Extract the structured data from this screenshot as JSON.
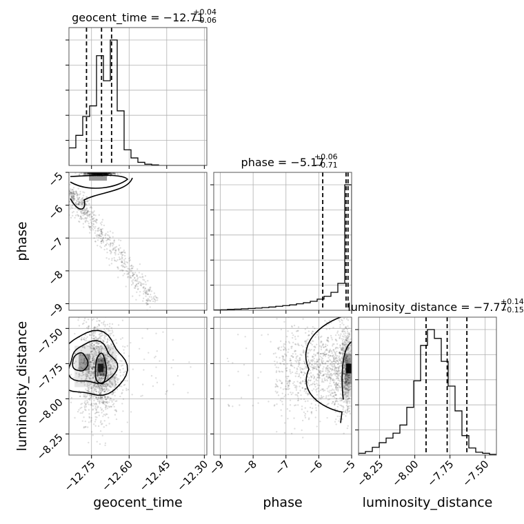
{
  "chart_data": {
    "type": "corner",
    "parameters": [
      "geocent_time",
      "phase",
      "luminosity_distance"
    ],
    "grid": true,
    "titles": [
      {
        "parameter": "geocent_time",
        "label": "geocent_time = ",
        "median": "−12.71",
        "plus": "+0.04",
        "minus": "−0.06"
      },
      {
        "parameter": "phase",
        "label": "phase = ",
        "median": "−5.17",
        "plus": "+0.06",
        "minus": "−0.71"
      },
      {
        "parameter": "luminosity_distance",
        "label": "luminosity_distance = ",
        "median": "−7.77",
        "plus": "+0.14",
        "minus": "−0.15"
      }
    ],
    "axes": {
      "geocent_time": {
        "range": [
          -12.84,
          -12.29
        ],
        "ticks": [
          -12.75,
          -12.6,
          -12.45,
          -12.3
        ],
        "tick_labels": [
          "−12.75",
          "−12.60",
          "−12.45",
          "−12.30"
        ]
      },
      "phase": {
        "range": [
          -9.2,
          -5.0
        ],
        "ticks": [
          -9,
          -8,
          -7,
          -6,
          -5
        ],
        "tick_labels": [
          "−9",
          "−8",
          "−7",
          "−6",
          "−5"
        ]
      },
      "luminosity_distance": {
        "range": [
          -8.4,
          -7.42
        ],
        "ticks": [
          -8.25,
          -8.0,
          -7.75,
          -7.5
        ],
        "tick_labels": [
          "−8.25",
          "−8.00",
          "−7.75",
          "−7.50"
        ]
      }
    },
    "histograms": {
      "geocent_time": {
        "bin_edges": [
          -12.84,
          -12.8125,
          -12.785,
          -12.7575,
          -12.73,
          -12.7025,
          -12.675,
          -12.6475,
          -12.62,
          -12.5925,
          -12.565,
          -12.5375,
          -12.51,
          -12.4825,
          -12.455,
          -12.4275,
          -12.4,
          -12.3725,
          -12.345,
          -12.3175,
          -12.29
        ],
        "counts": [
          0.28,
          0.48,
          0.78,
          0.95,
          1.75,
          1.35,
          2.0,
          0.87,
          0.25,
          0.12,
          0.05,
          0.02,
          0.01,
          0.0,
          0.0,
          0.0,
          0.0,
          0.0,
          0.0,
          0.0
        ],
        "quantiles": [
          -12.77,
          -12.71,
          -12.67
        ]
      },
      "phase": {
        "bin_edges": [
          -9.2,
          -8.99,
          -8.78,
          -8.57,
          -8.36,
          -8.15,
          -7.94,
          -7.73,
          -7.52,
          -7.31,
          -7.1,
          -6.89,
          -6.68,
          -6.47,
          -6.26,
          -6.05,
          -5.84,
          -5.63,
          -5.42,
          -5.21,
          -5.0
        ],
        "counts": [
          0.02,
          0.03,
          0.05,
          0.06,
          0.08,
          0.1,
          0.12,
          0.15,
          0.18,
          0.22,
          0.26,
          0.3,
          0.36,
          0.42,
          0.5,
          0.62,
          0.78,
          1.0,
          1.5,
          7.0
        ],
        "quantiles": [
          -5.88,
          -5.17,
          -5.11
        ]
      },
      "luminosity_distance": {
        "bin_edges": [
          -8.4,
          -8.351,
          -8.302,
          -8.253,
          -8.204,
          -8.155,
          -8.106,
          -8.057,
          -8.008,
          -7.959,
          -7.91,
          -7.861,
          -7.812,
          -7.763,
          -7.714,
          -7.665,
          -7.616,
          -7.567,
          -7.518,
          -7.469,
          -7.42
        ],
        "counts": [
          0.05,
          0.1,
          0.22,
          0.35,
          0.48,
          0.62,
          0.85,
          1.35,
          2.1,
          3.1,
          3.55,
          3.3,
          2.65,
          1.95,
          1.25,
          0.55,
          0.2,
          0.08,
          0.05,
          0.02
        ],
        "quantiles": [
          -7.92,
          -7.77,
          -7.63
        ]
      }
    },
    "scatter_2d": {
      "phase_vs_geocent_time": {
        "x_center": -12.72,
        "x_spread": 0.045,
        "y_mode": -5.1,
        "tail_end_x": -12.5,
        "tail_end_y": -9.0,
        "contour_levels": [
          0.39,
          0.86
        ]
      },
      "luminosity_distance_vs_geocent_time": {
        "x_center": -12.72,
        "x_spread": 0.04,
        "y_center": -7.8,
        "y_spread": 0.17,
        "contour_levels": [
          0.39,
          0.86
        ]
      },
      "luminosity_distance_vs_phase": {
        "x_mode": -5.1,
        "y_center": -7.8,
        "y_spread": 0.16,
        "contour_levels": [
          0.39,
          0.86
        ]
      }
    }
  }
}
